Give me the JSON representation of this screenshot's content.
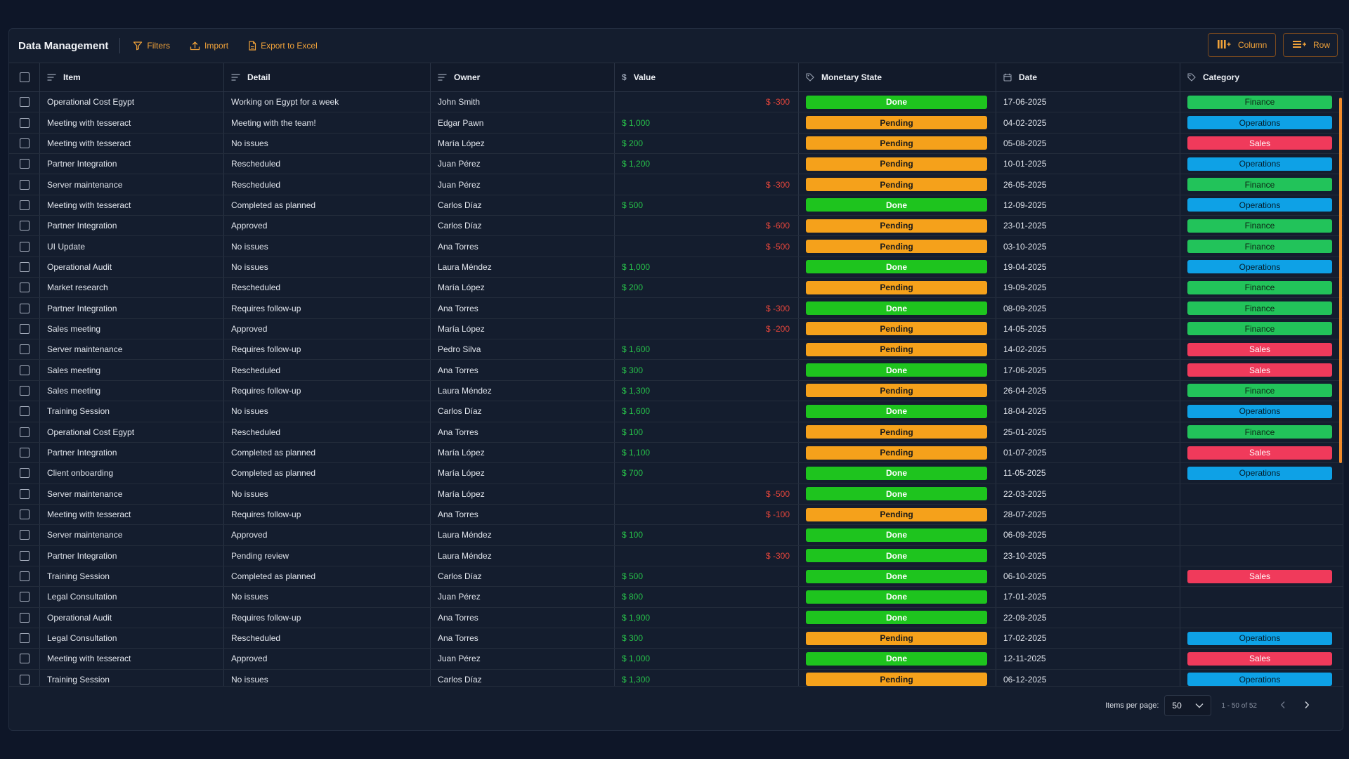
{
  "toolbar": {
    "title": "Data Management",
    "filters_label": "Filters",
    "import_label": "Import",
    "export_label": "Export to Excel",
    "column_label": "Column",
    "row_label": "Row"
  },
  "columns": {
    "item": "Item",
    "detail": "Detail",
    "owner": "Owner",
    "value": "Value",
    "state": "Monetary State",
    "date": "Date",
    "category": "Category"
  },
  "colors": {
    "accent": "#f0a23a",
    "done": "#1ec41e",
    "pending": "#f5a11b",
    "finance": "#22c35a",
    "operations": "#0ea1e6",
    "sales": "#f03a5b",
    "positive": "#27c24a",
    "negative": "#e2453b"
  },
  "rows": [
    {
      "item": "Operational Cost Egypt",
      "detail": "Working on Egypt for a week",
      "owner": "John Smith",
      "value": "$ -300",
      "state": "Done",
      "date": "17-06-2025",
      "category": "Finance"
    },
    {
      "item": "Meeting with tesseract",
      "detail": "Meeting with the team!",
      "owner": "Edgar Pawn",
      "value": "$ 1,000",
      "state": "Pending",
      "date": "04-02-2025",
      "category": "Operations"
    },
    {
      "item": "Meeting with tesseract",
      "detail": "No issues",
      "owner": "María López",
      "value": "$ 200",
      "state": "Pending",
      "date": "05-08-2025",
      "category": "Sales"
    },
    {
      "item": "Partner Integration",
      "detail": "Rescheduled",
      "owner": "Juan Pérez",
      "value": "$ 1,200",
      "state": "Pending",
      "date": "10-01-2025",
      "category": "Operations"
    },
    {
      "item": "Server maintenance",
      "detail": "Rescheduled",
      "owner": "Juan Pérez",
      "value": "$ -300",
      "state": "Pending",
      "date": "26-05-2025",
      "category": "Finance"
    },
    {
      "item": "Meeting with tesseract",
      "detail": "Completed as planned",
      "owner": "Carlos Díaz",
      "value": "$ 500",
      "state": "Done",
      "date": "12-09-2025",
      "category": "Operations"
    },
    {
      "item": "Partner Integration",
      "detail": "Approved",
      "owner": "Carlos Díaz",
      "value": "$ -600",
      "state": "Pending",
      "date": "23-01-2025",
      "category": "Finance"
    },
    {
      "item": "UI Update",
      "detail": "No issues",
      "owner": "Ana Torres",
      "value": "$ -500",
      "state": "Pending",
      "date": "03-10-2025",
      "category": "Finance"
    },
    {
      "item": "Operational Audit",
      "detail": "No issues",
      "owner": "Laura Méndez",
      "value": "$ 1,000",
      "state": "Done",
      "date": "19-04-2025",
      "category": "Operations"
    },
    {
      "item": "Market research",
      "detail": "Rescheduled",
      "owner": "María López",
      "value": "$ 200",
      "state": "Pending",
      "date": "19-09-2025",
      "category": "Finance"
    },
    {
      "item": "Partner Integration",
      "detail": "Requires follow-up",
      "owner": "Ana Torres",
      "value": "$ -300",
      "state": "Done",
      "date": "08-09-2025",
      "category": "Finance"
    },
    {
      "item": "Sales meeting",
      "detail": "Approved",
      "owner": "María López",
      "value": "$ -200",
      "state": "Pending",
      "date": "14-05-2025",
      "category": "Finance"
    },
    {
      "item": "Server maintenance",
      "detail": "Requires follow-up",
      "owner": "Pedro Silva",
      "value": "$ 1,600",
      "state": "Pending",
      "date": "14-02-2025",
      "category": "Sales"
    },
    {
      "item": "Sales meeting",
      "detail": "Rescheduled",
      "owner": "Ana Torres",
      "value": "$ 300",
      "state": "Done",
      "date": "17-06-2025",
      "category": "Sales"
    },
    {
      "item": "Sales meeting",
      "detail": "Requires follow-up",
      "owner": "Laura Méndez",
      "value": "$ 1,300",
      "state": "Pending",
      "date": "26-04-2025",
      "category": "Finance"
    },
    {
      "item": "Training Session",
      "detail": "No issues",
      "owner": "Carlos Díaz",
      "value": "$ 1,600",
      "state": "Done",
      "date": "18-04-2025",
      "category": "Operations"
    },
    {
      "item": "Operational Cost Egypt",
      "detail": "Rescheduled",
      "owner": "Ana Torres",
      "value": "$ 100",
      "state": "Pending",
      "date": "25-01-2025",
      "category": "Finance"
    },
    {
      "item": "Partner Integration",
      "detail": "Completed as planned",
      "owner": "María López",
      "value": "$ 1,100",
      "state": "Pending",
      "date": "01-07-2025",
      "category": "Sales"
    },
    {
      "item": "Client onboarding",
      "detail": "Completed as planned",
      "owner": "María López",
      "value": "$ 700",
      "state": "Done",
      "date": "11-05-2025",
      "category": "Operations"
    },
    {
      "item": "Server maintenance",
      "detail": "No issues",
      "owner": "María López",
      "value": "$ -500",
      "state": "Done",
      "date": "22-03-2025",
      "category": ""
    },
    {
      "item": "Meeting with tesseract",
      "detail": "Requires follow-up",
      "owner": "Ana Torres",
      "value": "$ -100",
      "state": "Pending",
      "date": "28-07-2025",
      "category": ""
    },
    {
      "item": "Server maintenance",
      "detail": "Approved",
      "owner": "Laura Méndez",
      "value": "$ 100",
      "state": "Done",
      "date": "06-09-2025",
      "category": ""
    },
    {
      "item": "Partner Integration",
      "detail": "Pending review",
      "owner": "Laura Méndez",
      "value": "$ -300",
      "state": "Done",
      "date": "23-10-2025",
      "category": ""
    },
    {
      "item": "Training Session",
      "detail": "Completed as planned",
      "owner": "Carlos Díaz",
      "value": "$ 500",
      "state": "Done",
      "date": "06-10-2025",
      "category": "Sales"
    },
    {
      "item": "Legal Consultation",
      "detail": "No issues",
      "owner": "Juan Pérez",
      "value": "$ 800",
      "state": "Done",
      "date": "17-01-2025",
      "category": ""
    },
    {
      "item": "Operational Audit",
      "detail": "Requires follow-up",
      "owner": "Ana Torres",
      "value": "$ 1,900",
      "state": "Done",
      "date": "22-09-2025",
      "category": ""
    },
    {
      "item": "Legal Consultation",
      "detail": "Rescheduled",
      "owner": "Ana Torres",
      "value": "$ 300",
      "state": "Pending",
      "date": "17-02-2025",
      "category": "Operations"
    },
    {
      "item": "Meeting with tesseract",
      "detail": "Approved",
      "owner": "Juan Pérez",
      "value": "$ 1,000",
      "state": "Done",
      "date": "12-11-2025",
      "category": "Sales"
    },
    {
      "item": "Training Session",
      "detail": "No issues",
      "owner": "Carlos Díaz",
      "value": "$ 1,300",
      "state": "Pending",
      "date": "06-12-2025",
      "category": "Operations"
    }
  ],
  "pagination": {
    "items_per_page_label": "Items per page:",
    "items_per_page_value": "50",
    "range_text": "1 - 50 of 52"
  }
}
